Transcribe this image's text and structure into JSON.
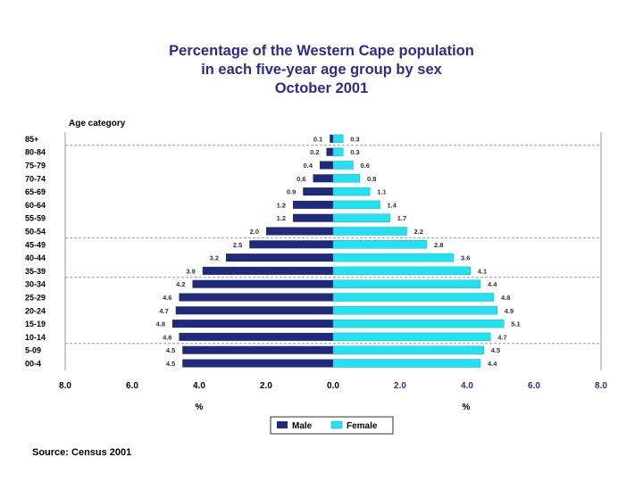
{
  "chart_data": {
    "type": "bar",
    "orientation": "horizontal-population-pyramid",
    "title_lines": [
      "Percentage of the Western Cape population",
      "in each five-year age group by sex",
      "October 2001"
    ],
    "y_axis_title": "Age category",
    "x_tick_labels": [
      "8.0",
      "6.0",
      "4.0",
      "2.0",
      "0.0",
      "2.0",
      "4.0",
      "6.0",
      "8.0"
    ],
    "xlim": [
      -8,
      8
    ],
    "unit_labels": [
      "%",
      "%"
    ],
    "categories": [
      "85+",
      "80-84",
      "75-79",
      "70-74",
      "65-69",
      "60-64",
      "55-59",
      "50-54",
      "45-49",
      "40-44",
      "35-39",
      "30-34",
      "25-29",
      "20-24",
      "15-19",
      "10-14",
      "5-09",
      "00-4"
    ],
    "series": [
      {
        "name": "Male",
        "color": "#1f2a7a",
        "values": [
          0.1,
          0.2,
          0.4,
          0.6,
          0.9,
          1.2,
          1.2,
          2.0,
          2.5,
          3.2,
          3.9,
          4.2,
          4.6,
          4.7,
          4.8,
          4.6,
          4.5,
          4.5
        ]
      },
      {
        "name": "Female",
        "color": "#22e1f0",
        "values": [
          0.3,
          0.3,
          0.6,
          0.8,
          1.1,
          1.4,
          1.7,
          2.2,
          2.8,
          3.6,
          4.1,
          4.4,
          4.8,
          4.9,
          5.1,
          4.7,
          4.5,
          4.4
        ]
      }
    ],
    "legend": {
      "position": "bottom-center",
      "labels": [
        "Male",
        "Female"
      ]
    },
    "grid": false
  },
  "source": "Source: Census 2001"
}
